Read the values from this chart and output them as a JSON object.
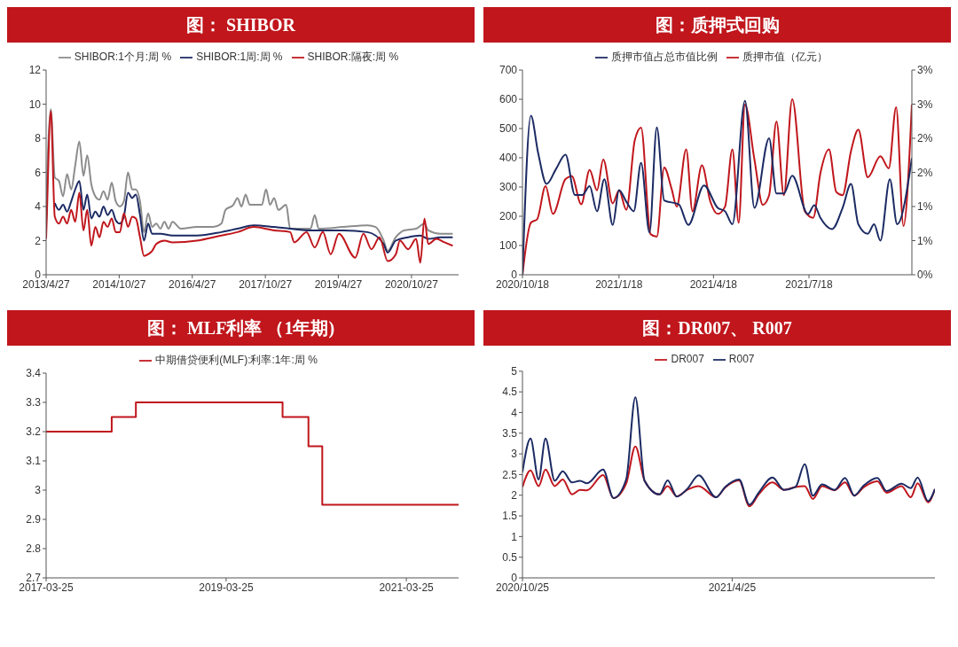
{
  "chart_data": [
    {
      "type": "line",
      "title": "图： SHIBOR",
      "legend": "top",
      "xlim": [
        "2013-04-27",
        "2021-10-15"
      ],
      "xticks": [
        {
          "value": "2013-04-27",
          "label": "2013/4/27"
        },
        {
          "value": "2014-10-27",
          "label": "2014/10/27"
        },
        {
          "value": "2016-04-27",
          "label": "2016/4/27"
        },
        {
          "value": "2017-10-27",
          "label": "2017/10/27"
        },
        {
          "value": "2019-04-27",
          "label": "2019/4/27"
        },
        {
          "value": "2020-10-27",
          "label": "2020/10/27"
        }
      ],
      "ylim": [
        0,
        12
      ],
      "yticks": [
        0,
        2,
        4,
        6,
        8,
        10,
        12
      ],
      "series": [
        {
          "name": "SHIBOR:1个月:周 %",
          "color": "#8c8c8c",
          "x": [
            "2013-04-27",
            "2013-05",
            "2013-06",
            "2013-07",
            "2013-08",
            "2013-09",
            "2013-10",
            "2013-11",
            "2013-12",
            "2014-01",
            "2014-02",
            "2014-03",
            "2014-04",
            "2014-05",
            "2014-06",
            "2014-07",
            "2014-08",
            "2014-09",
            "2014-10",
            "2014-11",
            "2014-12",
            "2015-01",
            "2015-02",
            "2015-03",
            "2015-04",
            "2015-05",
            "2015-06",
            "2015-07",
            "2015-08",
            "2015-09",
            "2015-10",
            "2015-11",
            "2015-12",
            "2016-02",
            "2016-06",
            "2016-10",
            "2016-12",
            "2017-01",
            "2017-03",
            "2017-04",
            "2017-05",
            "2017-06",
            "2017-07",
            "2017-10",
            "2017-11",
            "2017-12",
            "2018-01",
            "2018-02",
            "2018-04",
            "2018-05",
            "2018-10",
            "2018-11",
            "2018-12",
            "2019-06",
            "2019-12",
            "2020-02",
            "2020-04",
            "2020-05",
            "2020-07",
            "2020-09",
            "2020-12",
            "2021-02",
            "2021-03",
            "2021-06",
            "2021-09"
          ],
          "values": [
            3.2,
            4.6,
            9.7,
            5.7,
            5.5,
            4.6,
            5.9,
            5.0,
            6.4,
            7.8,
            5.8,
            7.0,
            5.3,
            4.6,
            4.4,
            4.9,
            4.4,
            5.4,
            4.3,
            4.0,
            4.3,
            6.0,
            5.0,
            5.0,
            4.3,
            2.5,
            3.6,
            2.8,
            3.0,
            2.7,
            3.1,
            2.7,
            3.1,
            2.7,
            2.8,
            2.8,
            3.0,
            3.8,
            4.1,
            4.5,
            4.0,
            4.7,
            4.1,
            4.1,
            5.0,
            4.1,
            4.5,
            3.8,
            4.1,
            2.7,
            2.7,
            3.5,
            2.7,
            2.8,
            2.9,
            2.8,
            2.0,
            1.4,
            2.2,
            2.6,
            2.7,
            3.0,
            2.6,
            2.4,
            2.4
          ]
        },
        {
          "name": "SHIBOR:1周:周 %",
          "color": "#1b2a63",
          "x": [
            "2013-04-27",
            "2013-05",
            "2013-06",
            "2013-07",
            "2013-08",
            "2013-09",
            "2013-10",
            "2013-11",
            "2013-12",
            "2014-01",
            "2014-02",
            "2014-03",
            "2014-04",
            "2014-05",
            "2014-06",
            "2014-07",
            "2014-08",
            "2014-09",
            "2014-10",
            "2014-11",
            "2014-12",
            "2015-01",
            "2015-02",
            "2015-03",
            "2015-04",
            "2015-05",
            "2015-06",
            "2015-07",
            "2015-09",
            "2015-12",
            "2016-06",
            "2016-12",
            "2017-04",
            "2017-08",
            "2018-01",
            "2018-05",
            "2018-10",
            "2019-06",
            "2019-12",
            "2020-04",
            "2020-05",
            "2020-07",
            "2020-10",
            "2021-01",
            "2021-03",
            "2021-06",
            "2021-09"
          ],
          "values": [
            3.0,
            4.0,
            null,
            4.2,
            3.8,
            4.1,
            3.7,
            4.3,
            5.0,
            5.5,
            3.8,
            4.7,
            3.3,
            3.7,
            3.4,
            4.0,
            3.5,
            3.8,
            3.2,
            3.0,
            3.4,
            4.8,
            4.5,
            4.7,
            3.5,
            2.0,
            3.0,
            2.4,
            2.4,
            2.3,
            2.3,
            2.5,
            2.7,
            2.9,
            2.8,
            2.7,
            2.6,
            2.6,
            2.5,
            1.8,
            1.3,
            2.0,
            2.2,
            2.3,
            2.1,
            2.2,
            2.2
          ]
        },
        {
          "name": "SHIBOR:隔夜:周 %",
          "color": "#c0161c",
          "x": [
            "2013-04-27",
            "2013-05",
            "2013-06",
            "2013-07",
            "2013-08",
            "2013-09",
            "2013-10",
            "2013-11",
            "2013-12",
            "2014-01",
            "2014-02",
            "2014-03",
            "2014-04",
            "2014-05",
            "2014-06",
            "2014-07",
            "2014-08",
            "2014-09",
            "2014-10",
            "2014-11",
            "2014-12",
            "2015-01",
            "2015-02",
            "2015-03",
            "2015-04",
            "2015-05",
            "2015-06",
            "2015-07",
            "2015-08",
            "2015-10",
            "2015-12",
            "2016-06",
            "2016-12",
            "2017-04",
            "2017-08",
            "2018-01",
            "2018-05",
            "2018-06",
            "2018-09",
            "2018-11",
            "2019-01",
            "2019-03",
            "2019-05",
            "2019-09",
            "2019-11",
            "2020-01",
            "2020-03",
            "2020-05",
            "2020-07",
            "2020-08",
            "2020-10",
            "2020-12",
            "2021-01",
            "2021-02",
            "2021-03",
            "2021-05",
            "2021-07",
            "2021-09"
          ],
          "values": [
            2.1,
            3.1,
            9.6,
            3.4,
            3.0,
            3.4,
            3.0,
            3.8,
            3.1,
            4.8,
            2.6,
            3.8,
            1.7,
            2.8,
            2.2,
            3.1,
            2.8,
            3.3,
            2.5,
            2.5,
            3.6,
            2.8,
            3.4,
            3.3,
            2.2,
            1.1,
            1.2,
            1.4,
            1.8,
            2.0,
            1.9,
            2.0,
            2.3,
            2.5,
            2.8,
            2.6,
            2.5,
            1.9,
            2.5,
            1.6,
            2.5,
            1.2,
            2.4,
            1.0,
            2.4,
            1.5,
            2.2,
            0.8,
            1.2,
            2.0,
            1.5,
            2.1,
            0.7,
            3.3,
            1.8,
            2.1,
            1.9,
            1.7
          ]
        }
      ]
    },
    {
      "type": "line",
      "title": "图：质押式回购",
      "legend": "top",
      "xlim": [
        "2020-10-18",
        "2021-10-24"
      ],
      "xticks": [
        {
          "value": "2020-10-18",
          "label": "2020/10/18"
        },
        {
          "value": "2021-01-18",
          "label": "2021/1/18"
        },
        {
          "value": "2021-04-18",
          "label": "2021/4/18"
        },
        {
          "value": "2021-07-18",
          "label": "2021/7/18"
        }
      ],
      "ylim": [
        0,
        700
      ],
      "yticks": [
        0,
        100,
        200,
        300,
        400,
        500,
        600,
        700
      ],
      "y2lim": [
        0,
        3
      ],
      "y2ticks": [
        {
          "value": 0,
          "label": "0%"
        },
        {
          "value": 0.5,
          "label": "1%"
        },
        {
          "value": 1,
          "label": "1%"
        },
        {
          "value": 1.5,
          "label": "2%"
        },
        {
          "value": 2,
          "label": "2%"
        },
        {
          "value": 2.5,
          "label": "3%"
        },
        {
          "value": 3,
          "label": "3%"
        }
      ],
      "series": [
        {
          "name": "质押市值（亿元）",
          "color": "#c0161c",
          "x": [
            "2020-10-18",
            "2020-10-26",
            "2020-11-01",
            "2020-11-09",
            "2020-11-16",
            "2020-11-28",
            "2020-12-04",
            "2020-12-13",
            "2020-12-21",
            "2020-12-28",
            "2021-01-03",
            "2021-01-12",
            "2021-01-18",
            "2021-01-25",
            "2021-02-02",
            "2021-02-08",
            "2021-02-17",
            "2021-02-23",
            "2021-03-02",
            "2021-03-09",
            "2021-03-14",
            "2021-03-23",
            "2021-03-29",
            "2021-04-07",
            "2021-04-15",
            "2021-04-22",
            "2021-04-29",
            "2021-05-06",
            "2021-05-12",
            "2021-05-18",
            "2021-05-27",
            "2021-06-04",
            "2021-06-10",
            "2021-06-17",
            "2021-06-24",
            "2021-07-02",
            "2021-07-14",
            "2021-07-22",
            "2021-07-29",
            "2021-08-06",
            "2021-08-13",
            "2021-08-19",
            "2021-08-27",
            "2021-09-03",
            "2021-09-12",
            "2021-09-24",
            "2021-10-02",
            "2021-10-09",
            "2021-10-16",
            "2021-10-24"
          ],
          "values": [
            0,
            178,
            190,
            303,
            208,
            327,
            337,
            241,
            358,
            289,
            394,
            244,
            289,
            222,
            460,
            503,
            139,
            130,
            367,
            295,
            233,
            429,
            217,
            374,
            250,
            208,
            233,
            429,
            178,
            582,
            394,
            239,
            272,
            524,
            272,
            600,
            217,
            195,
            350,
            429,
            283,
            272,
            423,
            496,
            333,
            405,
            364,
            573,
            167,
            582
          ]
        },
        {
          "name": "质押市值占总市值比例",
          "color": "#1b2a63",
          "axis": "y2",
          "x": [
            "2020-10-18",
            "2020-10-26",
            "2020-11-02",
            "2020-11-10",
            "2020-11-19",
            "2020-11-28",
            "2020-12-07",
            "2020-12-14",
            "2020-12-21",
            "2020-12-28",
            "2021-01-04",
            "2021-01-12",
            "2021-01-18",
            "2021-01-25",
            "2021-02-01",
            "2021-02-08",
            "2021-02-16",
            "2021-02-23",
            "2021-03-02",
            "2021-03-16",
            "2021-03-25",
            "2021-04-09",
            "2021-04-22",
            "2021-04-29",
            "2021-05-06",
            "2021-05-18",
            "2021-05-27",
            "2021-06-10",
            "2021-06-17",
            "2021-06-24",
            "2021-07-02",
            "2021-07-17",
            "2021-07-23",
            "2021-07-29",
            "2021-08-09",
            "2021-08-19",
            "2021-08-27",
            "2021-09-03",
            "2021-09-12",
            "2021-09-18",
            "2021-09-24",
            "2021-10-03",
            "2021-10-10",
            "2021-10-24"
          ],
          "values": [
            0,
            2.33,
            1.78,
            1.33,
            1.55,
            1.76,
            1.17,
            1.17,
            1.3,
            0.93,
            1.4,
            0.73,
            1.24,
            1.07,
            0.93,
            1.64,
            0.62,
            2.16,
            1.09,
            1.03,
            0.73,
            1.31,
            0.98,
            0.93,
            0.74,
            2.55,
            0.98,
            2.0,
            1.19,
            1.19,
            1.45,
            0.89,
            1.02,
            0.83,
            0.67,
            0.98,
            1.33,
            0.74,
            0.6,
            0.74,
            0.5,
            1.4,
            0.74,
            1.71
          ]
        }
      ]
    },
    {
      "type": "step",
      "title": "图： MLF利率 （1年期)",
      "legend": "top",
      "xlim": [
        "2017-03-25",
        "2021-10-23"
      ],
      "xticks": [
        "2017-03-25",
        "2019-03-25",
        "2021-03-25"
      ],
      "ylim": [
        2.7,
        3.4
      ],
      "yticks": [
        2.7,
        2.8,
        2.9,
        3,
        3.1,
        3.2,
        3.3,
        3.4
      ],
      "series": [
        {
          "name": "中期借贷便利(MLF):利率:1年:周 %",
          "color": "#c0161c",
          "x": [
            "2017-03-25",
            "2017-12-16",
            "2018-03-24",
            "2019-11-09",
            "2020-02-22",
            "2020-04-18",
            "2021-10-23"
          ],
          "values": [
            3.2,
            3.25,
            3.3,
            3.25,
            3.15,
            2.95,
            2.95
          ]
        }
      ]
    },
    {
      "type": "line",
      "title": "图：DR007、 R007",
      "legend": "top",
      "x": [
        "2020-10-25",
        "2020-11-01",
        "2020-11-08",
        "2020-11-14",
        "2020-11-22",
        "2020-11-29",
        "2020-12-07",
        "2020-12-14",
        "2020-12-20",
        "2021-01-03",
        "2021-01-12",
        "2021-01-23",
        "2021-01-31",
        "2021-02-08",
        "2021-02-21",
        "2021-02-28",
        "2021-03-08",
        "2021-03-17",
        "2021-03-27",
        "2021-04-11",
        "2021-04-19",
        "2021-05-01",
        "2021-05-10",
        "2021-05-18",
        "2021-05-30",
        "2021-06-09",
        "2021-06-19",
        "2021-06-27",
        "2021-07-04",
        "2021-07-12",
        "2021-07-23",
        "2021-08-01",
        "2021-08-09",
        "2021-08-17",
        "2021-08-29",
        "2021-09-06",
        "2021-09-19",
        "2021-09-27",
        "2021-10-03",
        "2021-10-12",
        "2021-10-18"
      ],
      "xlim": [
        "2020-10-25",
        "2021-10-18"
      ],
      "xticks": [
        {
          "value": "2020-10-25",
          "label": "2020/10/25"
        },
        {
          "value": "2021-04-25",
          "label": "2021/4/25"
        }
      ],
      "ylim": [
        0,
        5
      ],
      "yticks": [
        0,
        0.5,
        1,
        1.5,
        2,
        2.5,
        3,
        3.5,
        4,
        4.5,
        5
      ],
      "series": [
        {
          "name": "DR007",
          "color": "#c0161c",
          "values": [
            2.2,
            2.6,
            2.22,
            2.62,
            2.22,
            2.38,
            2.02,
            2.13,
            2.12,
            2.49,
            1.93,
            2.28,
            3.18,
            2.35,
            2.02,
            2.22,
            1.97,
            2.13,
            2.22,
            1.95,
            2.19,
            2.36,
            1.73,
            2.02,
            2.31,
            2.13,
            2.2,
            2.22,
            1.91,
            2.22,
            2.12,
            2.31,
            1.99,
            2.19,
            2.34,
            2.06,
            2.22,
            1.95,
            2.29,
            1.83,
            2.15
          ]
        },
        {
          "name": "R007",
          "color": "#1b2a63",
          "values": [
            2.56,
            3.37,
            2.38,
            3.37,
            2.35,
            2.58,
            2.31,
            2.35,
            2.29,
            2.62,
            1.93,
            2.38,
            4.37,
            2.35,
            2.02,
            2.36,
            1.97,
            2.15,
            2.48,
            1.95,
            2.2,
            2.38,
            1.77,
            2.06,
            2.43,
            2.13,
            2.2,
            2.75,
            1.99,
            2.26,
            2.13,
            2.42,
            1.99,
            2.23,
            2.42,
            2.1,
            2.28,
            2.17,
            2.43,
            1.86,
            2.15
          ]
        }
      ]
    }
  ]
}
